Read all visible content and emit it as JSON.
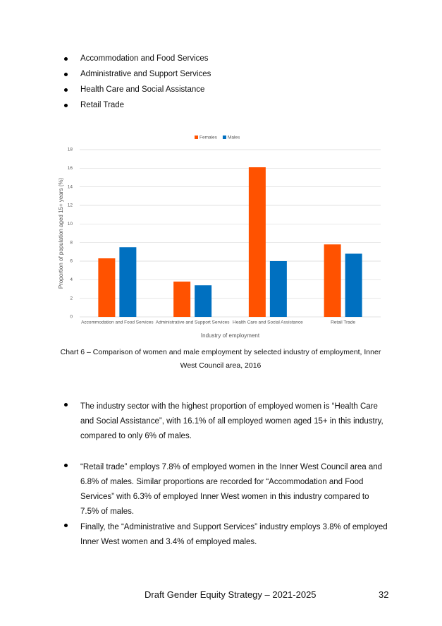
{
  "bullets": [
    "Accommodation and Food Services",
    "Administrative and Support Services",
    "Health Care and Social Assistance",
    "Retail Trade"
  ],
  "chart_data": {
    "type": "bar",
    "categories": [
      "Accommodation and Food Services",
      "Administrative and Support Services",
      "Health Care and Social Assistance",
      "Retail Trade"
    ],
    "series": [
      {
        "name": "Females",
        "color": "#ff5200",
        "values": [
          6.3,
          3.8,
          16.1,
          7.8
        ]
      },
      {
        "name": "Males",
        "color": "#0070c0",
        "values": [
          7.5,
          3.4,
          6.0,
          6.8
        ]
      }
    ],
    "ylim": [
      0,
      18
    ],
    "yticks": [
      0,
      2,
      4,
      6,
      8,
      10,
      12,
      14,
      16,
      18
    ],
    "grid": true,
    "legend": "top",
    "x_label": "Industry of employment",
    "y_label": "Proportion of population aged 15+ years (%)"
  },
  "caption": "Chart 6 – Comparison of women and male employment by selected industry of employment, Inner West Council area, 2016",
  "paragraphs": [
    "The industry sector with the highest proportion of employed women is “Health Care and Social Assistance”, with 16.1% of all employed women aged 15+ in this industry, compared to only 6% of males.",
    "“Retail trade” employs 7.8% of employed women in the Inner West Council area and 6.8% of males. Similar proportions are recorded for “Accommodation and Food Services” with 6.3% of employed Inner West women in this industry compared to 7.5% of males.",
    "Finally, the “Administrative and Support Services” industry employs 3.8% of employed Inner West women and 3.4% of employed males."
  ],
  "footer": {
    "title": "Draft Gender Equity Strategy – 2021-2025",
    "page": "32"
  }
}
